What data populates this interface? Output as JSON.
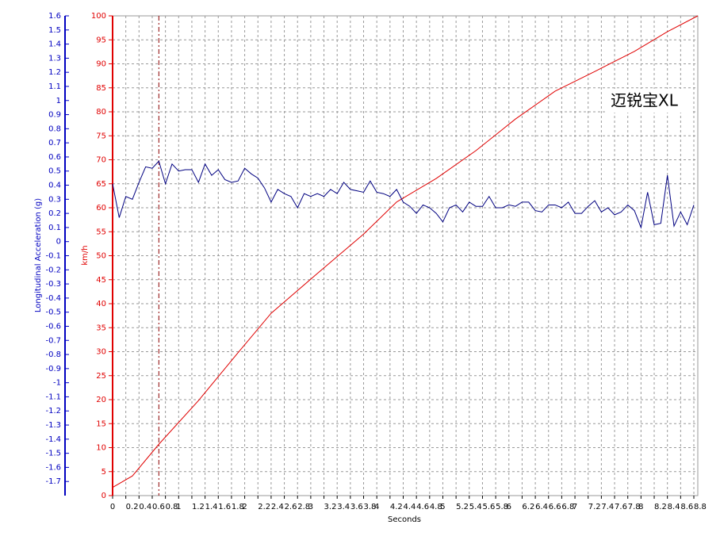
{
  "chart_data": {
    "type": "line",
    "xlabel": "Seconds",
    "ylabel": "km/h",
    "y2label": "Longitudinal Acceleration (g)",
    "annotation": "迈锐宝XL",
    "xlim": [
      0,
      8.86
    ],
    "ylim": [
      0,
      100
    ],
    "y2lim": [
      -1.8,
      1.6
    ],
    "xticks": [
      0,
      0.2,
      0.4,
      0.6,
      0.8,
      1,
      1.2,
      1.4,
      1.6,
      1.8,
      2,
      2.2,
      2.4,
      2.6,
      2.8,
      3,
      3.2,
      3.4,
      3.6,
      3.8,
      4,
      4.2,
      4.4,
      4.6,
      4.8,
      5,
      5.2,
      5.4,
      5.6,
      5.8,
      6,
      6.2,
      6.4,
      6.6,
      6.8,
      7,
      7.2,
      7.4,
      7.6,
      7.8,
      8,
      8.2,
      8.4,
      8.6,
      8.8
    ],
    "yticks": [
      0,
      5,
      10,
      15,
      20,
      25,
      30,
      35,
      40,
      45,
      50,
      55,
      60,
      65,
      70,
      75,
      80,
      85,
      90,
      95,
      100
    ],
    "y2ticks": [
      1.6,
      1.5,
      1.4,
      1.3,
      1.2,
      1.1,
      1,
      0.9,
      0.8,
      0.7,
      0.6,
      0.5,
      0.4,
      0.3,
      0.2,
      0.1,
      0,
      -0.1,
      -0.2,
      -0.3,
      -0.4,
      -0.5,
      -0.6,
      -0.7,
      -0.8,
      -0.9,
      -1,
      -1.1,
      -1.2,
      -1.3,
      -1.4,
      -1.5,
      -1.6,
      -1.7
    ],
    "grid": true,
    "cursor_x": 0.7,
    "series": [
      {
        "name": "km/h",
        "color": "#e00000",
        "axis": "y",
        "x": [
          0,
          0.3,
          0.7,
          1.3,
          1.9,
          2.4,
          3.1,
          3.8,
          4.3,
          4.9,
          5.5,
          6.1,
          6.7,
          7.3,
          7.9,
          8.4,
          8.86
        ],
        "values": [
          1.7,
          4.1,
          10.7,
          19.8,
          29.8,
          38,
          46.3,
          54.5,
          61.2,
          66.1,
          71.9,
          78.5,
          84.3,
          88.4,
          92.6,
          96.7,
          100
        ]
      },
      {
        "name": "g",
        "color": "#000080",
        "axis": "y2",
        "x": [
          0,
          0.1,
          0.2,
          0.3,
          0.4,
          0.5,
          0.6,
          0.7,
          0.8,
          0.9,
          1,
          1.1,
          1.2,
          1.3,
          1.4,
          1.5,
          1.6,
          1.7,
          1.8,
          1.9,
          2,
          2.1,
          2.2,
          2.3,
          2.4,
          2.5,
          2.6,
          2.7,
          2.8,
          2.9,
          3,
          3.1,
          3.2,
          3.3,
          3.4,
          3.5,
          3.6,
          3.7,
          3.8,
          3.9,
          4,
          4.1,
          4.2,
          4.3,
          4.4,
          4.5,
          4.6,
          4.7,
          4.8,
          4.9,
          5,
          5.1,
          5.2,
          5.3,
          5.4,
          5.5,
          5.6,
          5.7,
          5.8,
          5.9,
          6,
          6.1,
          6.2,
          6.3,
          6.4,
          6.5,
          6.6,
          6.7,
          6.8,
          6.9,
          7,
          7.1,
          7.2,
          7.3,
          7.4,
          7.5,
          7.6,
          7.7,
          7.8,
          7.9,
          8,
          8.1,
          8.2,
          8.3,
          8.4,
          8.5,
          8.6,
          8.7,
          8.8
        ],
        "values": [
          0.41,
          0.17,
          0.32,
          0.3,
          0.42,
          0.53,
          0.52,
          0.57,
          0.41,
          0.55,
          0.5,
          0.51,
          0.51,
          0.42,
          0.55,
          0.47,
          0.51,
          0.44,
          0.42,
          0.43,
          0.52,
          0.48,
          0.45,
          0.38,
          0.28,
          0.37,
          0.34,
          0.32,
          0.24,
          0.34,
          0.32,
          0.34,
          0.32,
          0.37,
          0.34,
          0.42,
          0.37,
          0.36,
          0.35,
          0.43,
          0.35,
          0.34,
          0.32,
          0.37,
          0.28,
          0.25,
          0.2,
          0.26,
          0.24,
          0.2,
          0.14,
          0.24,
          0.26,
          0.21,
          0.28,
          0.25,
          0.25,
          0.32,
          0.24,
          0.24,
          0.26,
          0.25,
          0.28,
          0.28,
          0.22,
          0.21,
          0.26,
          0.26,
          0.24,
          0.28,
          0.2,
          0.2,
          0.25,
          0.29,
          0.21,
          0.24,
          0.19,
          0.21,
          0.26,
          0.22,
          0.1,
          0.35,
          0.12,
          0.13,
          0.47,
          0.11,
          0.21,
          0.12,
          0.26
        ]
      }
    ]
  }
}
